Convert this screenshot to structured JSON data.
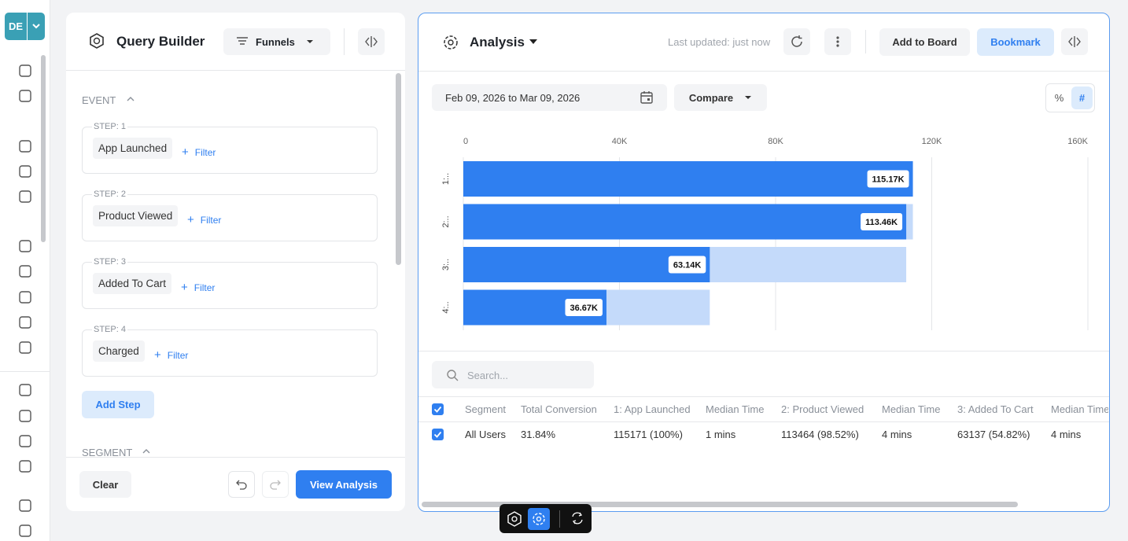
{
  "sidebar": {
    "avatar": "DE"
  },
  "query_builder": {
    "title": "Query Builder",
    "mode": "Funnels",
    "event_section": "EVENT",
    "steps": [
      {
        "label": "STEP: 1",
        "event": "App Launched",
        "filter": "Filter"
      },
      {
        "label": "STEP: 2",
        "event": "Product Viewed",
        "filter": "Filter"
      },
      {
        "label": "STEP: 3",
        "event": "Added To Cart",
        "filter": "Filter"
      },
      {
        "label": "STEP: 4",
        "event": "Charged",
        "filter": "Filter"
      }
    ],
    "add_step": "Add Step",
    "segment_section": "SEGMENT",
    "clear": "Clear",
    "view_analysis": "View Analysis"
  },
  "analysis": {
    "title": "Analysis",
    "last_updated": "Last updated: just now",
    "add_to_board": "Add to Board",
    "bookmark": "Bookmark",
    "date_range": "Feb 09, 2026 to Mar 09, 2026",
    "compare": "Compare",
    "toggles": [
      "%",
      "#"
    ],
    "search_placeholder": "Search..."
  },
  "chart_data": {
    "type": "bar",
    "orientation": "horizontal",
    "categories": [
      "1:..",
      "2:..",
      "3:..",
      "4:.."
    ],
    "values": [
      115171,
      113464,
      63137,
      36670
    ],
    "value_labels": [
      "115.17K",
      "113.46K",
      "63.14K",
      "36.67K"
    ],
    "color": "#2f7ff0",
    "dropoff_color": "#c4dafa",
    "xlim": [
      0,
      160000
    ],
    "xticks": [
      0,
      {
        "value": 40000,
        "label": "40K"
      },
      {
        "value": 80000,
        "label": "80K"
      },
      {
        "value": 120000,
        "label": "120K"
      },
      {
        "value": 160000,
        "label": "160K"
      }
    ],
    "grid": true
  },
  "table": {
    "columns": [
      "Segment",
      "Total Conversion",
      "1: App Launched",
      "Median Time",
      "2: Product Viewed",
      "Median Time",
      "3: Added To Cart",
      "Median Time"
    ],
    "rows": [
      [
        "All Users",
        "31.84%",
        "115171 (100%)",
        "1 mins",
        "113464 (98.52%)",
        "4 mins",
        "63137 (54.82%)",
        "4 mins"
      ]
    ]
  }
}
